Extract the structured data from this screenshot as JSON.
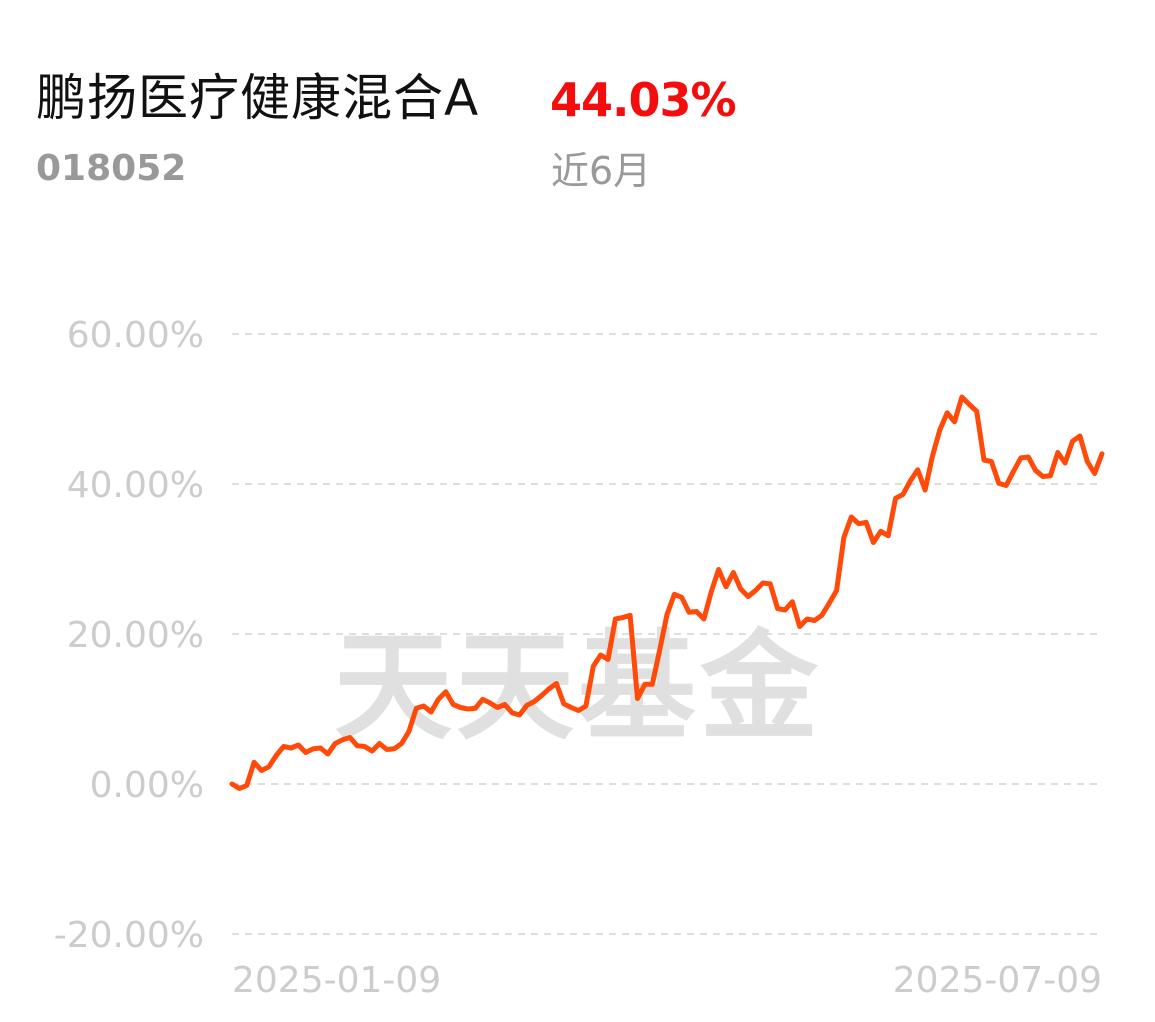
{
  "header": {
    "fund_name": "鹏扬医疗健康混合A",
    "return_value": "44.03%",
    "fund_code": "018052",
    "period_label": "近6月"
  },
  "colors": {
    "line": "#ff4a0a",
    "return": "#f40d0d",
    "grid": "#dedede",
    "ticks": "#cccccc",
    "watermark": "#e0e0e0"
  },
  "watermark": "天天基金",
  "chart_data": {
    "type": "line",
    "title": "",
    "xlabel": "",
    "ylabel": "",
    "ylim": [
      -20,
      60
    ],
    "grid": true,
    "grid_style": "dashed",
    "yticks": [
      60,
      40,
      20,
      0,
      -20
    ],
    "ytick_labels": [
      "60.00%",
      "40.00%",
      "20.00%",
      "0.00%",
      "-20.00%"
    ],
    "xtick_labels": [
      "2025-01-09",
      "2025-07-09"
    ],
    "series": [
      {
        "name": "",
        "values": [
          0.0,
          -0.6,
          -0.2,
          2.9,
          1.8,
          2.3,
          3.8,
          5.0,
          4.8,
          5.2,
          4.2,
          4.7,
          4.8,
          4.0,
          5.4,
          5.9,
          6.2,
          5.1,
          5.0,
          4.4,
          5.4,
          4.6,
          4.7,
          5.4,
          7.0,
          10.1,
          10.4,
          9.6,
          11.3,
          12.3,
          10.6,
          10.2,
          10.0,
          10.1,
          11.3,
          10.8,
          10.2,
          10.6,
          9.5,
          9.2,
          10.5,
          11.0,
          11.8,
          12.7,
          13.4,
          10.7,
          10.2,
          9.8,
          10.4,
          15.7,
          17.2,
          16.6,
          22.0,
          22.2,
          22.5,
          11.4,
          13.3,
          13.3,
          17.8,
          22.6,
          25.3,
          24.9,
          22.9,
          23.0,
          22.0,
          25.6,
          28.6,
          26.3,
          28.2,
          26.0,
          25.0,
          25.8,
          26.8,
          26.7,
          23.4,
          23.2,
          24.3,
          21.0,
          22.0,
          21.8,
          22.5,
          24.1,
          25.8,
          32.9,
          35.6,
          34.7,
          34.9,
          32.2,
          33.7,
          33.1,
          38.1,
          38.6,
          40.4,
          41.9,
          39.2,
          43.7,
          47.2,
          49.5,
          48.3,
          51.6,
          50.6,
          49.7,
          43.2,
          43.0,
          40.1,
          39.8,
          41.7,
          43.5,
          43.6,
          41.8,
          41.0,
          41.1,
          44.2,
          42.8,
          45.7,
          46.4,
          43.0,
          41.4,
          44.03
        ]
      }
    ]
  }
}
